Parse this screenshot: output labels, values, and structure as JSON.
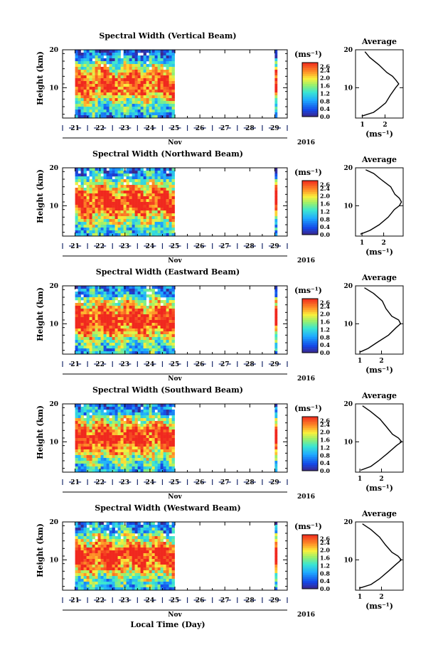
{
  "chart_data": [
    {
      "type": "heatmap",
      "title": "Spectral Width (Vertical Beam)",
      "ylabel": "Height (km)",
      "y_ticks": [
        "20",
        "10"
      ],
      "ylim": [
        2,
        20
      ],
      "x_ticks": [
        "21",
        "22",
        "23",
        "24",
        "25",
        "26",
        "27",
        "28",
        "29"
      ],
      "xlim": [
        20.5,
        29.5
      ],
      "month": "Nov",
      "year": "2016",
      "data_segments": [
        [
          21.0,
          25.0
        ],
        [
          29.0,
          29.1
        ]
      ],
      "colorbar": {
        "unit": "(ms⁻¹)",
        "ticks": [
          "2.6",
          "2.4",
          "2.0",
          "1.6",
          "1.2",
          "0.8",
          "0.4",
          "0.0"
        ],
        "range": [
          0.0,
          2.8
        ]
      },
      "average_profile": {
        "title": "Average",
        "xlabel": "(ms⁻¹)",
        "x_ticks": [
          "1",
          "2"
        ],
        "y_ticks": [
          "20",
          "10"
        ],
        "xlim": [
          0.7,
          2.8
        ],
        "height_km": [
          2.5,
          3.5,
          4.5,
          6,
          8,
          10,
          11,
          12,
          13,
          14,
          16,
          18,
          19.5
        ],
        "width_ms": [
          1.0,
          1.5,
          1.75,
          2.0,
          2.2,
          2.5,
          2.6,
          2.45,
          2.3,
          2.1,
          1.7,
          1.3,
          1.1
        ]
      }
    },
    {
      "type": "heatmap",
      "title": "Spectral Width (Northward Beam)",
      "ylabel": "Height (km)",
      "y_ticks": [
        "20",
        "10"
      ],
      "ylim": [
        2,
        20
      ],
      "x_ticks": [
        "21",
        "22",
        "23",
        "24",
        "25",
        "26",
        "27",
        "28",
        "29"
      ],
      "xlim": [
        20.5,
        29.5
      ],
      "month": "Nov",
      "year": "2016",
      "data_segments": [
        [
          21.0,
          25.0
        ],
        [
          29.0,
          29.1
        ]
      ],
      "colorbar": {
        "unit": "(ms⁻¹)",
        "ticks": [
          "2.6",
          "2.4",
          "2.0",
          "1.6",
          "1.2",
          "0.8",
          "0.4",
          "0.0"
        ],
        "range": [
          0.0,
          2.8
        ]
      },
      "average_profile": {
        "title": "Average",
        "xlabel": "(ms⁻¹)",
        "x_ticks": [
          "1",
          "2"
        ],
        "y_ticks": [
          "20",
          "10"
        ],
        "xlim": [
          0.7,
          2.9
        ],
        "height_km": [
          2.5,
          3.5,
          5,
          7,
          9,
          10,
          11,
          12,
          13,
          15,
          17,
          18.5,
          19.5
        ],
        "width_ms": [
          0.9,
          1.4,
          1.8,
          2.2,
          2.5,
          2.7,
          2.8,
          2.7,
          2.5,
          2.3,
          1.9,
          1.5,
          1.2
        ]
      }
    },
    {
      "type": "heatmap",
      "title": "Spectral Width (Eastward Beam)",
      "ylabel": "Height (km)",
      "y_ticks": [
        "20",
        "10"
      ],
      "ylim": [
        2,
        20
      ],
      "x_ticks": [
        "21",
        "22",
        "23",
        "24",
        "25",
        "26",
        "27",
        "28",
        "29"
      ],
      "xlim": [
        20.5,
        29.5
      ],
      "month": "Nov",
      "year": "2016",
      "data_segments": [
        [
          21.0,
          25.0
        ],
        [
          29.0,
          29.1
        ]
      ],
      "colorbar": {
        "unit": "(ms⁻¹)",
        "ticks": [
          "2.6",
          "2.4",
          "2.0",
          "1.6",
          "1.2",
          "0.8",
          "0.4",
          "0.0"
        ],
        "range": [
          0.0,
          2.8
        ]
      },
      "average_profile": {
        "title": "Average",
        "xlabel": "(ms⁻¹)",
        "x_ticks": [
          "1",
          "2"
        ],
        "y_ticks": [
          "20",
          "10"
        ],
        "xlim": [
          0.8,
          3.0
        ],
        "height_km": [
          2.5,
          3.5,
          5,
          7,
          9,
          10,
          11,
          12,
          14,
          16,
          18,
          19.5
        ],
        "width_ms": [
          1.0,
          1.4,
          1.8,
          2.3,
          2.7,
          2.9,
          2.8,
          2.5,
          2.2,
          2.0,
          1.6,
          1.2
        ]
      }
    },
    {
      "type": "heatmap",
      "title": "Spectral Width (Southward Beam)",
      "ylabel": "Height (km)",
      "y_ticks": [
        "20",
        "10"
      ],
      "ylim": [
        2,
        20
      ],
      "x_ticks": [
        "21",
        "22",
        "23",
        "24",
        "25",
        "26",
        "27",
        "28",
        "29"
      ],
      "xlim": [
        20.5,
        29.5
      ],
      "month": "Nov",
      "year": "2016",
      "data_segments": [
        [
          21.0,
          25.0
        ],
        [
          29.0,
          29.1
        ]
      ],
      "colorbar": {
        "unit": "(ms⁻¹)",
        "ticks": [
          "2.6",
          "2.4",
          "2.0",
          "1.6",
          "1.2",
          "0.8",
          "0.4",
          "0.0"
        ],
        "range": [
          0.0,
          2.8
        ]
      },
      "average_profile": {
        "title": "Average",
        "xlabel": "(ms⁻¹)",
        "x_ticks": [
          "1",
          "2"
        ],
        "y_ticks": [
          "20",
          "10"
        ],
        "xlim": [
          0.8,
          3.0
        ],
        "height_km": [
          2.5,
          3.5,
          5,
          7,
          9,
          10,
          11,
          12,
          14,
          16,
          18,
          19.5
        ],
        "width_ms": [
          1.0,
          1.5,
          1.9,
          2.3,
          2.7,
          2.9,
          2.8,
          2.5,
          2.2,
          1.9,
          1.5,
          1.1
        ]
      }
    },
    {
      "type": "heatmap",
      "title": "Spectral Width (Westward Beam)",
      "ylabel": "Height (km)",
      "y_ticks": [
        "20",
        "10"
      ],
      "ylim": [
        2,
        20
      ],
      "x_ticks": [
        "21",
        "22",
        "23",
        "24",
        "25",
        "26",
        "27",
        "28",
        "29"
      ],
      "xlim": [
        20.5,
        29.5
      ],
      "month": "Nov",
      "year": "2016",
      "x_title": "Local Time (Day)",
      "data_segments": [
        [
          21.0,
          25.0
        ],
        [
          29.0,
          29.1
        ]
      ],
      "colorbar": {
        "unit": "(ms⁻¹)",
        "ticks": [
          "2.6",
          "2.4",
          "2.0",
          "1.6",
          "1.2",
          "0.8",
          "0.4",
          "0.0"
        ],
        "range": [
          0.0,
          2.8
        ]
      },
      "average_profile": {
        "title": "Average",
        "xlabel": "(ms⁻¹)",
        "x_ticks": [
          "1",
          "2"
        ],
        "y_ticks": [
          "20",
          "10"
        ],
        "xlim": [
          0.8,
          3.0
        ],
        "height_km": [
          2.5,
          3.5,
          5,
          7,
          9,
          10,
          11,
          12,
          14,
          16,
          18,
          19.5
        ],
        "width_ms": [
          1.0,
          1.5,
          1.9,
          2.3,
          2.7,
          2.9,
          2.8,
          2.5,
          2.2,
          1.9,
          1.5,
          1.1
        ]
      }
    }
  ]
}
